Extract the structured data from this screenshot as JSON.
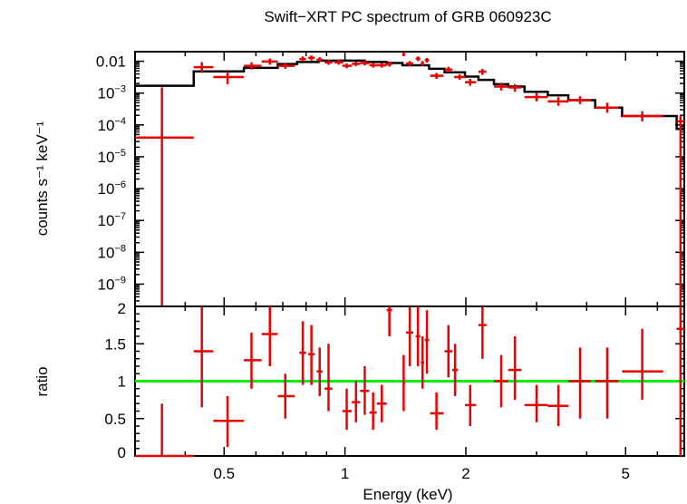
{
  "chart_data": [
    {
      "type": "scatter",
      "panel": "spectrum",
      "title": "Swift−XRT PC spectrum of GRB 060923C",
      "ylabel": "counts s⁻¹ keV⁻¹",
      "xscale": "log",
      "yscale": "log",
      "xlim": [
        0.3,
        7.0
      ],
      "ylim": [
        2e-10,
        0.02
      ],
      "yticks": [
        {
          "value": 0.01,
          "label": "0.01"
        },
        {
          "value": 0.001,
          "base": "10",
          "exp": "−3"
        },
        {
          "value": 0.0001,
          "base": "10",
          "exp": "−4"
        },
        {
          "value": 1e-05,
          "base": "10",
          "exp": "−5"
        },
        {
          "value": 1e-06,
          "base": "10",
          "exp": "−6"
        },
        {
          "value": 1e-07,
          "base": "10",
          "exp": "−7"
        },
        {
          "value": 1e-08,
          "base": "10",
          "exp": "−8"
        },
        {
          "value": 1e-09,
          "base": "10",
          "exp": "−9"
        }
      ],
      "data_color": "#ee0000",
      "model_color": "#000000",
      "points": [
        {
          "x": 0.35,
          "xlo": 0.3,
          "xhi": 0.42,
          "y": 4e-05,
          "ylo": 2e-10,
          "yhi": 0.0015
        },
        {
          "x": 0.44,
          "xlo": 0.42,
          "xhi": 0.47,
          "y": 0.0065,
          "ylo": 0.0043,
          "yhi": 0.0094
        },
        {
          "x": 0.51,
          "xlo": 0.47,
          "xhi": 0.56,
          "y": 0.0032,
          "ylo": 0.0019,
          "yhi": 0.0048
        },
        {
          "x": 0.585,
          "xlo": 0.56,
          "xhi": 0.62,
          "y": 0.0072,
          "ylo": 0.0055,
          "yhi": 0.0093
        },
        {
          "x": 0.65,
          "xlo": 0.62,
          "xhi": 0.68,
          "y": 0.0098,
          "ylo": 0.0078,
          "yhi": 0.0122
        },
        {
          "x": 0.71,
          "xlo": 0.68,
          "xhi": 0.75,
          "y": 0.0072,
          "ylo": 0.0058,
          "yhi": 0.0089
        },
        {
          "x": 0.785,
          "xlo": 0.77,
          "xhi": 0.8,
          "y": 0.0118,
          "ylo": 0.0098,
          "yhi": 0.0142
        },
        {
          "x": 0.825,
          "xlo": 0.81,
          "xhi": 0.84,
          "y": 0.0128,
          "ylo": 0.0106,
          "yhi": 0.0152
        },
        {
          "x": 0.865,
          "xlo": 0.85,
          "xhi": 0.88,
          "y": 0.0112,
          "ylo": 0.0094,
          "yhi": 0.0134
        },
        {
          "x": 0.91,
          "xlo": 0.89,
          "xhi": 0.93,
          "y": 0.0092,
          "ylo": 0.0077,
          "yhi": 0.011
        },
        {
          "x": 0.965,
          "xlo": 0.94,
          "xhi": 0.99,
          "y": 0.0093,
          "ylo": 0.0078,
          "yhi": 0.011
        },
        {
          "x": 1.01,
          "xlo": 0.985,
          "xhi": 1.04,
          "y": 0.0072,
          "ylo": 0.006,
          "yhi": 0.0086
        },
        {
          "x": 1.065,
          "xlo": 1.04,
          "xhi": 1.09,
          "y": 0.0083,
          "ylo": 0.007,
          "yhi": 0.0098
        },
        {
          "x": 1.12,
          "xlo": 1.09,
          "xhi": 1.15,
          "y": 0.0088,
          "ylo": 0.0074,
          "yhi": 0.0104
        },
        {
          "x": 1.175,
          "xlo": 1.15,
          "xhi": 1.2,
          "y": 0.0075,
          "ylo": 0.0063,
          "yhi": 0.009
        },
        {
          "x": 1.235,
          "xlo": 1.2,
          "xhi": 1.27,
          "y": 0.0075,
          "ylo": 0.0063,
          "yhi": 0.009
        },
        {
          "x": 1.29,
          "xlo": 1.27,
          "xhi": 1.31,
          "y": 0.0082,
          "ylo": 0.0068,
          "yhi": 0.0098
        },
        {
          "x": 1.4,
          "xlo": 1.39,
          "xhi": 1.41,
          "y": 0.017,
          "ylo": 0.0143,
          "yhi": 0.02
        },
        {
          "x": 1.45,
          "xlo": 1.42,
          "xhi": 1.48,
          "y": 0.0085,
          "ylo": 0.007,
          "yhi": 0.0102
        },
        {
          "x": 1.52,
          "xlo": 1.5,
          "xhi": 1.54,
          "y": 0.012,
          "ylo": 0.0101,
          "yhi": 0.0142
        },
        {
          "x": 1.56,
          "xlo": 1.545,
          "xhi": 1.575,
          "y": 0.0085,
          "ylo": 0.007,
          "yhi": 0.0102
        },
        {
          "x": 1.6,
          "xlo": 1.58,
          "xhi": 1.62,
          "y": 0.0108,
          "ylo": 0.009,
          "yhi": 0.0128
        },
        {
          "x": 1.69,
          "xlo": 1.63,
          "xhi": 1.76,
          "y": 0.0035,
          "ylo": 0.0028,
          "yhi": 0.0043
        },
        {
          "x": 1.81,
          "xlo": 1.77,
          "xhi": 1.85,
          "y": 0.0055,
          "ylo": 0.0045,
          "yhi": 0.0067
        },
        {
          "x": 1.93,
          "xlo": 1.87,
          "xhi": 1.99,
          "y": 0.0032,
          "ylo": 0.0026,
          "yhi": 0.0039
        },
        {
          "x": 2.05,
          "xlo": 1.99,
          "xhi": 2.12,
          "y": 0.0022,
          "ylo": 0.0017,
          "yhi": 0.0028
        },
        {
          "x": 2.2,
          "xlo": 2.15,
          "xhi": 2.25,
          "y": 0.0047,
          "ylo": 0.0037,
          "yhi": 0.0058
        },
        {
          "x": 2.45,
          "xlo": 2.35,
          "xhi": 2.55,
          "y": 0.0016,
          "ylo": 0.0012,
          "yhi": 0.0021
        },
        {
          "x": 2.65,
          "xlo": 2.55,
          "xhi": 2.75,
          "y": 0.0015,
          "ylo": 0.0011,
          "yhi": 0.0019
        },
        {
          "x": 3.0,
          "xlo": 2.8,
          "xhi": 3.2,
          "y": 0.00075,
          "ylo": 0.00055,
          "yhi": 0.001
        },
        {
          "x": 3.4,
          "xlo": 3.2,
          "xhi": 3.6,
          "y": 0.00055,
          "ylo": 0.0004,
          "yhi": 0.00075
        },
        {
          "x": 3.85,
          "xlo": 3.6,
          "xhi": 4.1,
          "y": 0.0006,
          "ylo": 0.00045,
          "yhi": 0.0008
        },
        {
          "x": 4.5,
          "xlo": 4.2,
          "xhi": 4.8,
          "y": 0.00035,
          "ylo": 0.00024,
          "yhi": 0.0005
        },
        {
          "x": 5.5,
          "xlo": 4.9,
          "xhi": 6.2,
          "y": 0.00019,
          "ylo": 0.00013,
          "yhi": 0.00027
        },
        {
          "x": 6.85,
          "xlo": 6.7,
          "xhi": 7.0,
          "y": 0.00013,
          "ylo": 2e-10,
          "yhi": 0.0002
        }
      ],
      "model_steps": [
        {
          "x1": 0.3,
          "x2": 0.42,
          "y": 0.0017
        },
        {
          "x1": 0.42,
          "x2": 0.56,
          "y": 0.0048
        },
        {
          "x1": 0.56,
          "x2": 0.68,
          "y": 0.0062
        },
        {
          "x1": 0.68,
          "x2": 0.76,
          "y": 0.0082
        },
        {
          "x1": 0.76,
          "x2": 0.86,
          "y": 0.0095
        },
        {
          "x1": 0.86,
          "x2": 1.12,
          "y": 0.0105
        },
        {
          "x1": 1.12,
          "x2": 1.27,
          "y": 0.0095
        },
        {
          "x1": 1.27,
          "x2": 1.39,
          "y": 0.0088
        },
        {
          "x1": 1.39,
          "x2": 1.62,
          "y": 0.0075
        },
        {
          "x1": 1.62,
          "x2": 1.77,
          "y": 0.0058
        },
        {
          "x1": 1.77,
          "x2": 1.99,
          "y": 0.0045
        },
        {
          "x1": 1.99,
          "x2": 2.15,
          "y": 0.0033
        },
        {
          "x1": 2.15,
          "x2": 2.35,
          "y": 0.0026
        },
        {
          "x1": 2.35,
          "x2": 2.55,
          "y": 0.0019
        },
        {
          "x1": 2.55,
          "x2": 2.8,
          "y": 0.0016
        },
        {
          "x1": 2.8,
          "x2": 3.2,
          "y": 0.0011
        },
        {
          "x1": 3.2,
          "x2": 3.6,
          "y": 0.00085
        },
        {
          "x1": 3.6,
          "x2": 4.2,
          "y": 0.0006
        },
        {
          "x1": 4.2,
          "x2": 4.9,
          "y": 0.00035
        },
        {
          "x1": 4.9,
          "x2": 6.7,
          "y": 0.00019
        },
        {
          "x1": 6.7,
          "x2": 7.0,
          "y": 7.5e-05
        }
      ]
    },
    {
      "type": "scatter",
      "panel": "ratio",
      "xlabel": "Energy (keV)",
      "ylabel": "ratio",
      "xscale": "log",
      "xlim": [
        0.3,
        7.0
      ],
      "ylim": [
        0,
        2
      ],
      "xticks": [
        {
          "value": 0.5,
          "label": "0.5"
        },
        {
          "value": 1,
          "label": "1"
        },
        {
          "value": 2,
          "label": "2"
        },
        {
          "value": 5,
          "label": "5"
        }
      ],
      "yticks": [
        {
          "value": 0,
          "label": "0"
        },
        {
          "value": 0.5,
          "label": "0.5"
        },
        {
          "value": 1,
          "label": "1"
        },
        {
          "value": 1.5,
          "label": "1.5"
        },
        {
          "value": 2,
          "label": "2"
        }
      ],
      "reference_line": {
        "y": 1,
        "color": "#00ee00"
      },
      "data_color": "#ee0000",
      "points": [
        {
          "x": 0.35,
          "xlo": 0.3,
          "xhi": 0.42,
          "y": 0.0,
          "ylo": 0.0,
          "yhi": 0.7
        },
        {
          "x": 0.44,
          "xlo": 0.42,
          "xhi": 0.47,
          "y": 1.4,
          "ylo": 0.65,
          "yhi": 2.0
        },
        {
          "x": 0.51,
          "xlo": 0.47,
          "xhi": 0.56,
          "y": 0.47,
          "ylo": 0.12,
          "yhi": 0.8
        },
        {
          "x": 0.585,
          "xlo": 0.56,
          "xhi": 0.62,
          "y": 1.28,
          "ylo": 0.9,
          "yhi": 1.65
        },
        {
          "x": 0.65,
          "xlo": 0.62,
          "xhi": 0.68,
          "y": 1.63,
          "ylo": 1.2,
          "yhi": 2.0
        },
        {
          "x": 0.71,
          "xlo": 0.68,
          "xhi": 0.75,
          "y": 0.8,
          "ylo": 0.5,
          "yhi": 1.1
        },
        {
          "x": 0.785,
          "xlo": 0.77,
          "xhi": 0.8,
          "y": 1.38,
          "ylo": 0.95,
          "yhi": 1.8
        },
        {
          "x": 0.825,
          "xlo": 0.81,
          "xhi": 0.84,
          "y": 1.36,
          "ylo": 0.95,
          "yhi": 1.75
        },
        {
          "x": 0.865,
          "xlo": 0.85,
          "xhi": 0.88,
          "y": 1.13,
          "ylo": 0.8,
          "yhi": 1.45
        },
        {
          "x": 0.91,
          "xlo": 0.89,
          "xhi": 0.93,
          "y": 0.9,
          "ylo": 0.6,
          "yhi": 1.5
        },
        {
          "x": 1.01,
          "xlo": 0.985,
          "xhi": 1.04,
          "y": 0.6,
          "ylo": 0.35,
          "yhi": 0.9
        },
        {
          "x": 1.065,
          "xlo": 1.04,
          "xhi": 1.09,
          "y": 0.72,
          "ylo": 0.45,
          "yhi": 1.0
        },
        {
          "x": 1.12,
          "xlo": 1.09,
          "xhi": 1.15,
          "y": 0.87,
          "ylo": 0.55,
          "yhi": 1.2
        },
        {
          "x": 1.175,
          "xlo": 1.15,
          "xhi": 1.2,
          "y": 0.58,
          "ylo": 0.35,
          "yhi": 0.85
        },
        {
          "x": 1.235,
          "xlo": 1.2,
          "xhi": 1.27,
          "y": 0.7,
          "ylo": 0.45,
          "yhi": 0.95
        },
        {
          "x": 1.29,
          "xlo": 1.27,
          "xhi": 1.31,
          "y": 1.95,
          "ylo": 1.6,
          "yhi": 2.0
        },
        {
          "x": 1.4,
          "xlo": 1.39,
          "xhi": 1.41,
          "y": 0.97,
          "ylo": 0.6,
          "yhi": 1.35
        },
        {
          "x": 1.45,
          "xlo": 1.42,
          "xhi": 1.48,
          "y": 1.65,
          "ylo": 1.2,
          "yhi": 2.0
        },
        {
          "x": 1.52,
          "xlo": 1.5,
          "xhi": 1.54,
          "y": 1.6,
          "ylo": 1.2,
          "yhi": 2.0
        },
        {
          "x": 1.56,
          "xlo": 1.545,
          "xhi": 1.575,
          "y": 1.25,
          "ylo": 0.9,
          "yhi": 1.6
        },
        {
          "x": 1.6,
          "xlo": 1.58,
          "xhi": 1.62,
          "y": 1.55,
          "ylo": 1.1,
          "yhi": 1.95
        },
        {
          "x": 1.69,
          "xlo": 1.63,
          "xhi": 1.76,
          "y": 0.57,
          "ylo": 0.35,
          "yhi": 0.85
        },
        {
          "x": 1.81,
          "xlo": 1.77,
          "xhi": 1.85,
          "y": 1.4,
          "ylo": 1.05,
          "yhi": 1.75
        },
        {
          "x": 1.88,
          "xlo": 1.85,
          "xhi": 1.91,
          "y": 1.15,
          "ylo": 0.8,
          "yhi": 1.5
        },
        {
          "x": 2.05,
          "xlo": 1.99,
          "xhi": 2.12,
          "y": 0.68,
          "ylo": 0.4,
          "yhi": 0.95
        },
        {
          "x": 2.2,
          "xlo": 2.15,
          "xhi": 2.25,
          "y": 1.75,
          "ylo": 1.3,
          "yhi": 2.0
        },
        {
          "x": 2.45,
          "xlo": 2.35,
          "xhi": 2.55,
          "y": 1.0,
          "ylo": 0.65,
          "yhi": 1.35
        },
        {
          "x": 2.65,
          "xlo": 2.55,
          "xhi": 2.75,
          "y": 1.15,
          "ylo": 0.75,
          "yhi": 1.6
        },
        {
          "x": 3.0,
          "xlo": 2.8,
          "xhi": 3.2,
          "y": 0.68,
          "ylo": 0.45,
          "yhi": 0.95
        },
        {
          "x": 3.4,
          "xlo": 3.2,
          "xhi": 3.6,
          "y": 0.67,
          "ylo": 0.4,
          "yhi": 0.95
        },
        {
          "x": 3.85,
          "xlo": 3.6,
          "xhi": 4.1,
          "y": 1.0,
          "ylo": 0.5,
          "yhi": 1.45
        },
        {
          "x": 4.5,
          "xlo": 4.2,
          "xhi": 4.8,
          "y": 1.0,
          "ylo": 0.5,
          "yhi": 1.45
        },
        {
          "x": 5.5,
          "xlo": 4.9,
          "xhi": 6.2,
          "y": 1.13,
          "ylo": 0.75,
          "yhi": 1.7
        },
        {
          "x": 6.85,
          "xlo": 6.7,
          "xhi": 7.0,
          "y": 1.7,
          "ylo": 0.0,
          "yhi": 2.0
        }
      ]
    }
  ]
}
